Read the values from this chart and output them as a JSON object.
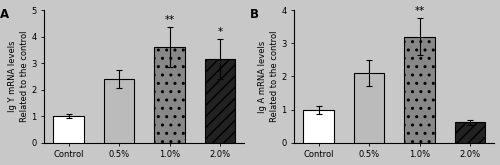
{
  "panel_A": {
    "label": "A",
    "ylabel": "Ig Y mRNA levels\nRelated to the control",
    "categories": [
      "Control",
      "0.5%",
      "1.0%",
      "2.0%"
    ],
    "values": [
      1.0,
      2.4,
      3.6,
      3.15
    ],
    "errors": [
      0.07,
      0.35,
      0.75,
      0.75
    ],
    "bar_colors": [
      "#ffffff",
      "#bbbbbb",
      "#888888",
      "#222222"
    ],
    "bar_edgecolors": [
      "#000000",
      "#000000",
      "#000000",
      "#000000"
    ],
    "bar_hatches": [
      "",
      "",
      "..",
      "///"
    ],
    "significance": [
      "",
      "",
      "**",
      "*"
    ],
    "ylim": [
      0,
      5
    ],
    "yticks": [
      0,
      1,
      2,
      3,
      4,
      5
    ]
  },
  "panel_B": {
    "label": "B",
    "ylabel": "Ig A mRNA levels\nRelated to the control",
    "categories": [
      "Control",
      "0.5%",
      "1.0%",
      "2.0%"
    ],
    "values": [
      1.0,
      2.1,
      3.2,
      0.62
    ],
    "errors": [
      0.12,
      0.4,
      0.55,
      0.07
    ],
    "bar_colors": [
      "#ffffff",
      "#bbbbbb",
      "#888888",
      "#222222"
    ],
    "bar_edgecolors": [
      "#000000",
      "#000000",
      "#000000",
      "#000000"
    ],
    "bar_hatches": [
      "",
      "",
      "..",
      "///"
    ],
    "significance": [
      "",
      "",
      "**",
      ""
    ],
    "ylim": [
      0,
      4
    ],
    "yticks": [
      0,
      1,
      2,
      3,
      4
    ]
  },
  "background_color": "#c8c8c8",
  "bar_width": 0.6,
  "tick_fontsize": 6.0,
  "label_fontsize": 6.0,
  "sig_fontsize": 7.5,
  "panel_label_fontsize": 8.5
}
